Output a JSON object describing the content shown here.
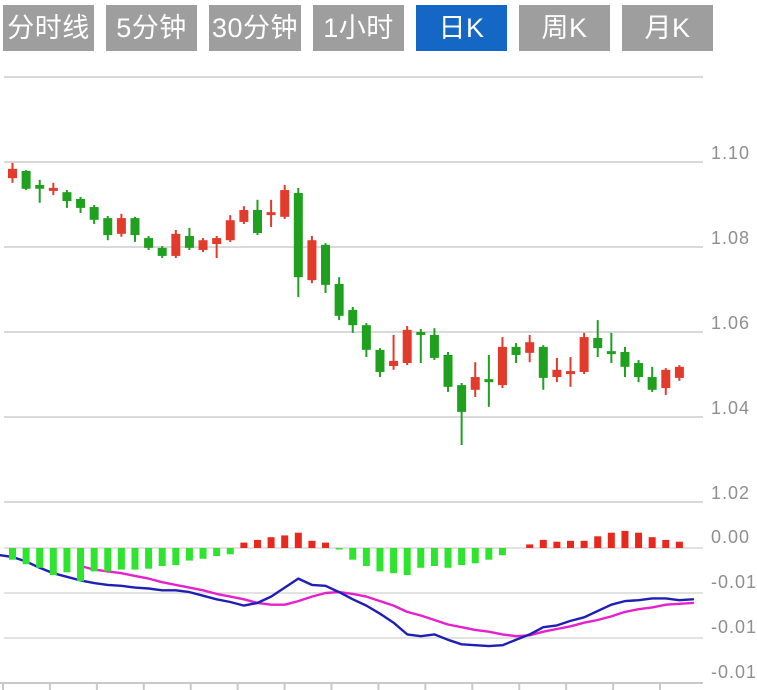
{
  "tabs": [
    {
      "label": "分时线",
      "active": false
    },
    {
      "label": "5分钟",
      "active": false
    },
    {
      "label": "30分钟",
      "active": false
    },
    {
      "label": "1小时",
      "active": false
    },
    {
      "label": "日K",
      "active": true
    },
    {
      "label": "周K",
      "active": false
    },
    {
      "label": "月K",
      "active": false
    }
  ],
  "colors": {
    "tab_bg": "#9e9e9e",
    "tab_active_bg": "#1467c4",
    "up_red": "#e23b2c",
    "down_green": "#1fa01f",
    "hist_red": "#e8271e",
    "hist_green": "#2fe42f",
    "dif_blue": "#1f1fb4",
    "dea_magenta": "#e620cc",
    "grid": "#d9d9d9",
    "axis_text": "#8f8f8f"
  },
  "chart_data": {
    "type": "candlestick+macd",
    "price_axis": {
      "gridline_values": [
        1.12,
        1.1,
        1.08,
        1.06,
        1.04,
        1.02
      ],
      "labels": [
        "",
        "1.10",
        "1.08",
        "1.06",
        "1.04",
        "1.02"
      ],
      "range": [
        1.02,
        1.12
      ]
    },
    "macd_axis": {
      "gridline_values": [
        0,
        -0.005,
        -0.01,
        -0.015
      ],
      "labels": [
        "0.00",
        "-0.01",
        "-0.01",
        "-0.01"
      ],
      "range": [
        -0.015,
        0.002
      ]
    },
    "candles_format": [
      "open",
      "high",
      "low",
      "close",
      "color r=up g=down"
    ],
    "candles": [
      [
        1.0962,
        1.0998,
        1.0951,
        1.0984,
        "r"
      ],
      [
        1.0979,
        1.0981,
        1.0934,
        1.0937,
        "g"
      ],
      [
        1.0946,
        1.0958,
        1.0904,
        1.0937,
        "g"
      ],
      [
        1.0932,
        1.0951,
        1.0922,
        1.0939,
        "r"
      ],
      [
        1.0929,
        1.0934,
        1.0892,
        1.0908,
        "g"
      ],
      [
        1.0913,
        1.0918,
        1.088,
        1.0892,
        "g"
      ],
      [
        1.0894,
        1.0899,
        1.0854,
        1.0864,
        "g"
      ],
      [
        1.0868,
        1.0873,
        1.0816,
        1.0828,
        "g"
      ],
      [
        1.0831,
        1.0878,
        1.0824,
        1.0868,
        "r"
      ],
      [
        1.0868,
        1.0871,
        1.0812,
        1.0828,
        "g"
      ],
      [
        1.0821,
        1.0826,
        1.0793,
        1.0798,
        "g"
      ],
      [
        1.0798,
        1.0802,
        1.0774,
        1.0779,
        "g"
      ],
      [
        1.0779,
        1.084,
        1.0774,
        1.0831,
        "r"
      ],
      [
        1.0826,
        1.0845,
        1.0793,
        1.0798,
        "g"
      ],
      [
        1.0793,
        1.0821,
        1.0788,
        1.0816,
        "r"
      ],
      [
        1.0807,
        1.0826,
        1.0774,
        1.0821,
        "r"
      ],
      [
        1.0816,
        1.0875,
        1.0812,
        1.0863,
        "r"
      ],
      [
        1.0859,
        1.0896,
        1.0854,
        1.0887,
        "r"
      ],
      [
        1.0887,
        1.0911,
        1.0828,
        1.0833,
        "g"
      ],
      [
        1.0875,
        1.0911,
        1.0847,
        1.0882,
        "r"
      ],
      [
        1.0871,
        1.0946,
        1.0866,
        1.0934,
        "r"
      ],
      [
        1.0927,
        1.0939,
        1.0682,
        1.0729,
        "g"
      ],
      [
        1.0722,
        1.0826,
        1.0715,
        1.0816,
        "r"
      ],
      [
        1.0805,
        1.0809,
        1.0692,
        1.0711,
        "g"
      ],
      [
        1.0713,
        1.0729,
        1.0628,
        1.0638,
        "g"
      ],
      [
        1.0652,
        1.0659,
        1.0598,
        1.0616,
        "g"
      ],
      [
        1.0616,
        1.0621,
        1.0541,
        1.0558,
        "g"
      ],
      [
        1.0558,
        1.0562,
        1.0494,
        1.0506,
        "g"
      ],
      [
        1.052,
        1.0593,
        1.0511,
        1.0532,
        "r"
      ],
      [
        1.0527,
        1.0614,
        1.0522,
        1.0605,
        "r"
      ],
      [
        1.06,
        1.0607,
        1.0527,
        1.0593,
        "g"
      ],
      [
        1.0593,
        1.0609,
        1.0534,
        1.0539,
        "g"
      ],
      [
        1.0546,
        1.0553,
        1.0459,
        1.0471,
        "g"
      ],
      [
        1.0475,
        1.048,
        1.0334,
        1.0412,
        "g"
      ],
      [
        1.0464,
        1.0529,
        1.0447,
        1.0494,
        "r"
      ],
      [
        1.0489,
        1.0546,
        1.0424,
        1.0482,
        "g"
      ],
      [
        1.0475,
        1.0588,
        1.0468,
        1.0565,
        "r"
      ],
      [
        1.0565,
        1.0574,
        1.0527,
        1.0546,
        "g"
      ],
      [
        1.0551,
        1.0593,
        1.0529,
        1.0576,
        "r"
      ],
      [
        1.0565,
        1.0569,
        1.0464,
        1.0492,
        "g"
      ],
      [
        1.0494,
        1.0539,
        1.0482,
        1.0511,
        "r"
      ],
      [
        1.0501,
        1.0541,
        1.0471,
        1.0508,
        "r"
      ],
      [
        1.0506,
        1.0598,
        1.0501,
        1.0588,
        "r"
      ],
      [
        1.0586,
        1.0628,
        1.0541,
        1.0562,
        "g"
      ],
      [
        1.0555,
        1.0598,
        1.0527,
        1.0548,
        "g"
      ],
      [
        1.0553,
        1.0565,
        1.0494,
        1.0518,
        "g"
      ],
      [
        1.0527,
        1.0534,
        1.0482,
        1.0494,
        "g"
      ],
      [
        1.0494,
        1.0518,
        1.0459,
        1.0464,
        "g"
      ],
      [
        1.0468,
        1.0515,
        1.0452,
        1.0511,
        "r"
      ],
      [
        1.0492,
        1.0522,
        1.0485,
        1.0518,
        "r"
      ]
    ],
    "macd": {
      "hist": [
        -0.0013,
        -0.0018,
        -0.0022,
        -0.003,
        -0.0027,
        -0.0037,
        -0.0026,
        -0.0026,
        -0.0024,
        -0.0024,
        -0.0023,
        -0.002,
        -0.0019,
        -0.0014,
        -0.0012,
        -0.0009,
        -0.0007,
        0.0006,
        0.0009,
        0.0012,
        0.0014,
        0.0017,
        0.0008,
        0.0006,
        -0.0001,
        -0.0013,
        -0.002,
        -0.0026,
        -0.0028,
        -0.003,
        -0.0022,
        -0.002,
        -0.0022,
        -0.0019,
        -0.0017,
        -0.0013,
        -0.0008,
        0.0,
        0.0004,
        0.0009,
        0.0007,
        0.0008,
        0.0008,
        0.0013,
        0.0017,
        0.0019,
        0.0017,
        0.0012,
        0.0009,
        0.0007
      ],
      "dif_x0": -0.0008,
      "dif": [
        -0.001,
        -0.0015,
        -0.0022,
        -0.0028,
        -0.0032,
        -0.0036,
        -0.0039,
        -0.0041,
        -0.0042,
        -0.0044,
        -0.0045,
        -0.0047,
        -0.0047,
        -0.0049,
        -0.0053,
        -0.0057,
        -0.006,
        -0.0064,
        -0.0061,
        -0.0054,
        -0.0044,
        -0.0034,
        -0.0041,
        -0.0042,
        -0.0049,
        -0.0057,
        -0.0064,
        -0.0073,
        -0.0083,
        -0.0096,
        -0.0098,
        -0.0096,
        -0.0102,
        -0.0107,
        -0.0108,
        -0.0109,
        -0.0108,
        -0.0102,
        -0.0096,
        -0.0088,
        -0.0086,
        -0.0081,
        -0.0077,
        -0.007,
        -0.0063,
        -0.0059,
        -0.0058,
        -0.0056,
        -0.0056,
        -0.0058,
        -0.0057
      ],
      "dea": [
        null,
        null,
        null,
        null,
        null,
        -0.002,
        -0.0024,
        -0.0026,
        -0.0028,
        -0.0031,
        -0.0034,
        -0.0038,
        -0.0041,
        -0.0044,
        -0.0047,
        -0.0051,
        -0.0054,
        -0.0057,
        -0.0061,
        -0.0063,
        -0.0063,
        -0.0059,
        -0.0054,
        -0.005,
        -0.0049,
        -0.0051,
        -0.0054,
        -0.0059,
        -0.0064,
        -0.0071,
        -0.0075,
        -0.008,
        -0.0085,
        -0.0088,
        -0.0091,
        -0.0093,
        -0.0096,
        -0.0098,
        -0.0097,
        -0.0093,
        -0.009,
        -0.0087,
        -0.0083,
        -0.008,
        -0.0076,
        -0.0071,
        -0.0068,
        -0.0066,
        -0.0063,
        -0.0062,
        -0.0061
      ]
    }
  }
}
